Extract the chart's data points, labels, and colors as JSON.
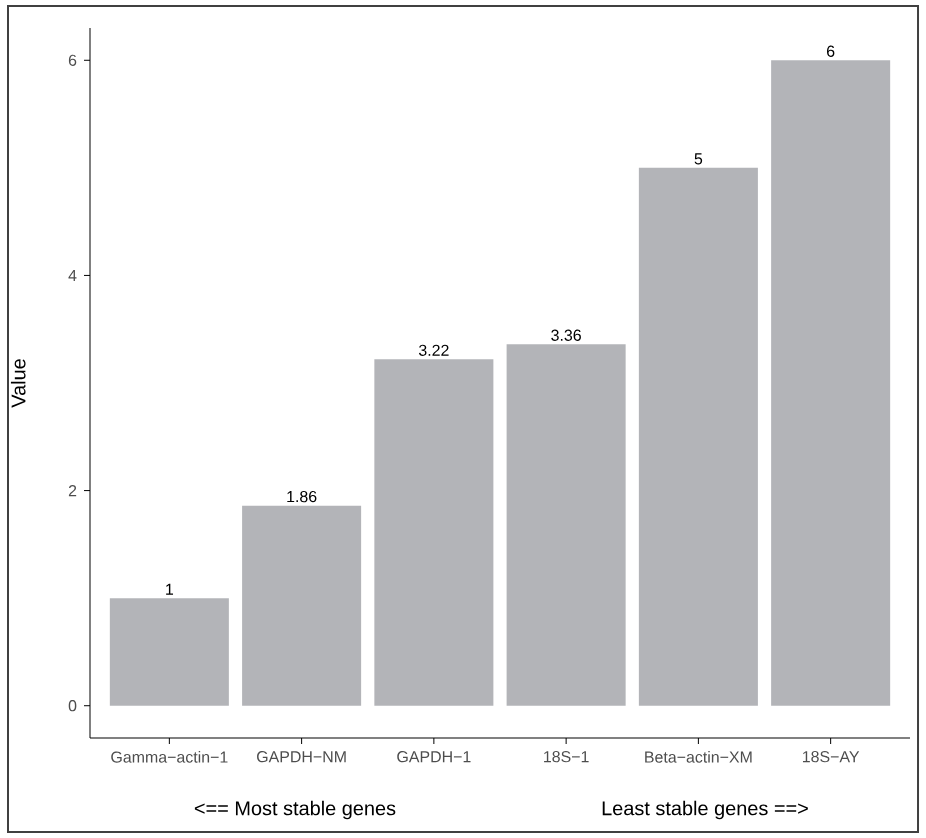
{
  "chart_data": {
    "type": "bar",
    "ylabel": "Value",
    "categories": [
      "Gamma−actin−1",
      "GAPDH−NM",
      "GAPDH−1",
      "18S−1",
      "Beta−actin−XM",
      "18S−AY"
    ],
    "values": [
      1,
      1.86,
      3.22,
      3.36,
      5,
      6
    ],
    "color": "#b3b4b8",
    "data_labels": true,
    "grid": false,
    "ylim": [
      -0.3,
      6.3
    ],
    "yticks": [
      0,
      2,
      4,
      6
    ],
    "annotations": [
      "<== Most stable genes",
      "Least stable genes ==>"
    ]
  }
}
